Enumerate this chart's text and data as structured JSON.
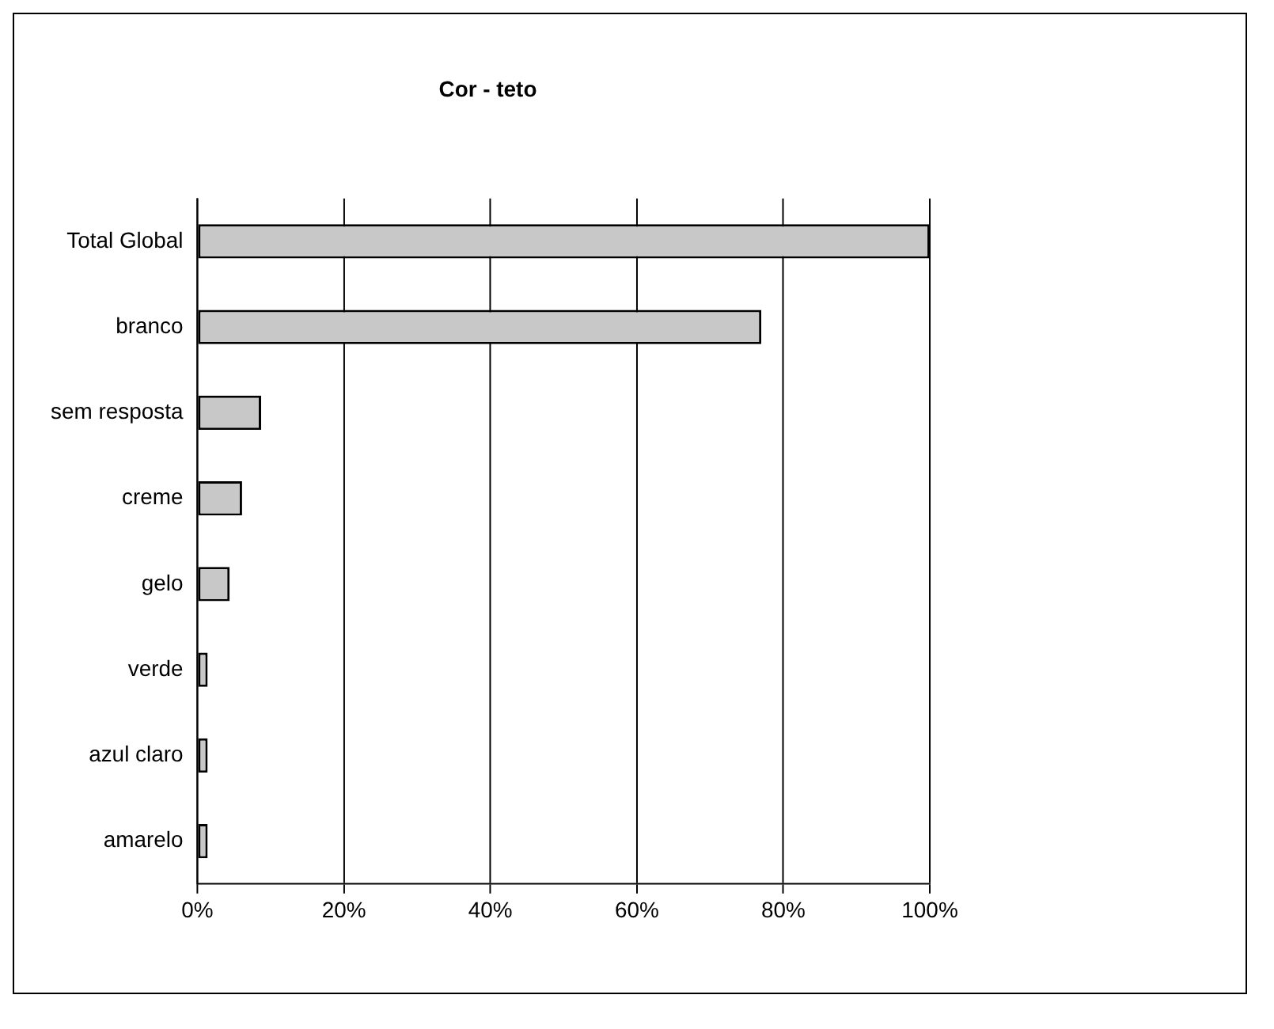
{
  "chart_data": {
    "type": "bar",
    "orientation": "horizontal",
    "title": "Cor - teto",
    "categories": [
      "Total Global",
      "branco",
      "sem resposta",
      "creme",
      "gelo",
      "verde",
      "azul claro",
      "amarelo"
    ],
    "values": [
      100,
      77,
      8.7,
      6.1,
      4.4,
      1.4,
      1.4,
      1.4
    ],
    "color": "#c8c8c8",
    "xlim": [
      0,
      100
    ],
    "xticks": [
      {
        "value": 0,
        "label": "0%"
      },
      {
        "value": 20,
        "label": "20%"
      },
      {
        "value": 40,
        "label": "40%"
      },
      {
        "value": 60,
        "label": "60%"
      },
      {
        "value": 80,
        "label": "80%"
      },
      {
        "value": 100,
        "label": "100%"
      }
    ],
    "grid": "x",
    "legend": false
  }
}
